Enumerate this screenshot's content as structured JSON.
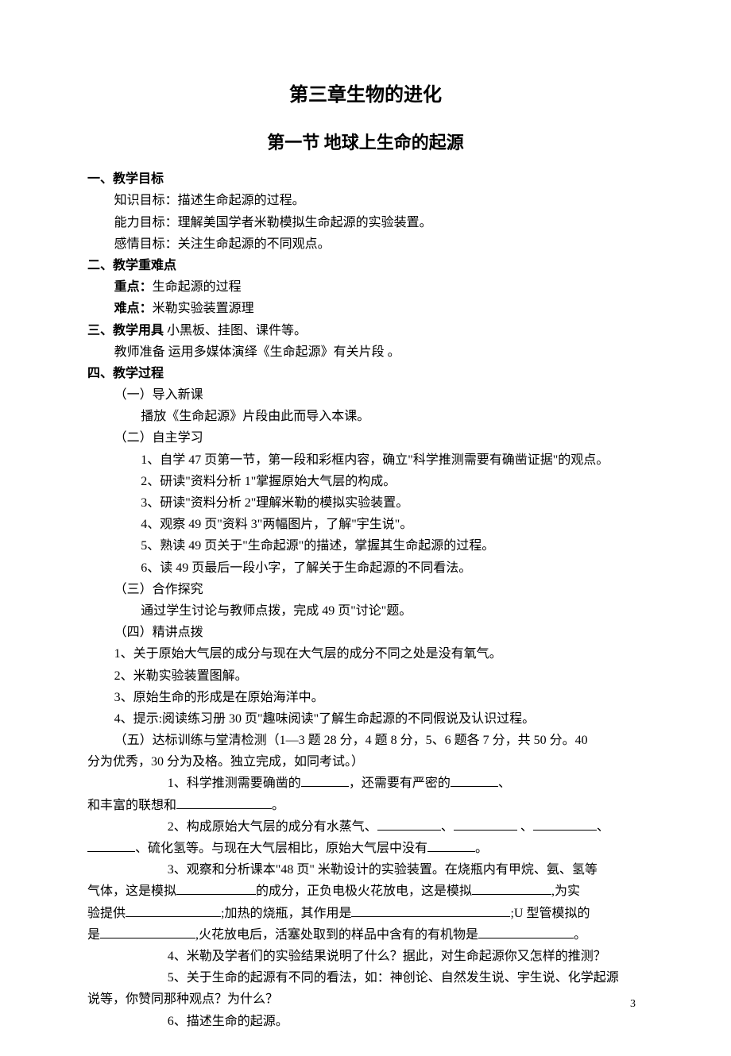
{
  "page_number": "3",
  "title_main": "第三章生物的进化",
  "title_sub": "第一节  地球上生命的起源",
  "sec1": {
    "heading": "一、教学目标",
    "items": [
      "知识目标：描述生命起源的过程。",
      "能力目标：理解美国学者米勒模拟生命起源的实验装置。",
      "感情目标：关注生命起源的不同观点。"
    ]
  },
  "sec2": {
    "heading": "二、教学重难点",
    "zd_label": "重点：",
    "zd_text": "生命起源的过程",
    "nd_label": "难点：",
    "nd_text": "米勒实验装置源理"
  },
  "sec3": {
    "heading": "三、教学用具",
    "heading_rest": "  小黑板、挂图、课件等。",
    "prep": "教师准备   运用多媒体演绎《生命起源》有关片段  。"
  },
  "sec4": {
    "heading": "四、教学过程",
    "p1": {
      "title": "（一）导入新课",
      "body": "播放《生命起源》片段由此而导入本课。"
    },
    "p2": {
      "title": "（二）自主学习",
      "items": [
        "1、自学 47 页第一节，第一段和彩框内容，确立\"科学推测需要有确凿证据\"的观点。",
        "2、研读\"资料分析 1\"掌握原始大气层的构成。",
        "3、研读\"资料分析 2\"理解米勒的模拟实验装置。",
        "4、观察 49 页\"资料 3\"两幅图片，了解\"宇生说\"。",
        "5、熟读 49 页关于\"生命起源\"的描述，掌握其生命起源的过程。",
        "6、读 49 页最后一段小字，了解关于生命起源的不同看法。"
      ]
    },
    "p3": {
      "title": "（三）合作探究",
      "body": "通过学生讨论与教师点拨，完成 49 页\"讨论\"题。"
    },
    "p4": {
      "title": "（四）精讲点拨",
      "items": [
        "1、关于原始大气层的成分与现在大气层的成分不同之处是没有氧气。",
        "2、米勒实验装置图解。",
        "3、原始生命的形成是在原始海洋中。",
        "4、提示:阅读练习册 30 页\"趣味阅读\"了解生命起源的不同假说及认识过程。"
      ]
    },
    "p5": {
      "title_a": "（五）达标训练与堂清检测（1—3 题 28 分，4 题 8 分，5、6 题各 7 分，共 50 分。40",
      "title_b": "分为优秀，30 分为及格。独立完成，如同考试。）",
      "q1_a": "1、科学推测需要确凿的",
      "q1_b": "，还需要有严密的",
      "q1_c": "、",
      "q1_d": "和丰富的联想和",
      "q1_e": "。",
      "q2_a": "2、构成原始大气层的成分有水蒸气、",
      "q2_b": "、",
      "q2_c": "  、",
      "q2_d": "、",
      "q2_e": "、硫化氢等。与现在大气层相比，原始大气层中没有",
      "q2_f": "。",
      "q3_a": "3、观察和分析课本\"48 页\"  米勒设计的实验装置。在烧瓶内有甲烷、氨、氢等",
      "q3_b": "气体，这是模拟",
      "q3_c": "的成分，正负电极火花放电，这是模拟",
      "q3_d": ",为实",
      "q3_e": "验提供",
      "q3_f": ";加热的烧瓶，其作用是",
      "q3_g": ";U 型管模拟的",
      "q3_h": "是",
      "q3_i": ",火花放电后，活塞处取到的样品中含有的有机物是",
      "q3_j": "。",
      "q4": "4、米勒及学者们的实验结果说明了什么？据此，对生命起源你又怎样的推测？",
      "q5_a": "5、关于生命的起源有不同的看法，如：神创论、自然发生说、宇生说、化学起源",
      "q5_b": "说等，你赞同那种观点？为什么？",
      "q6": "6、描述生命的起源。"
    }
  }
}
